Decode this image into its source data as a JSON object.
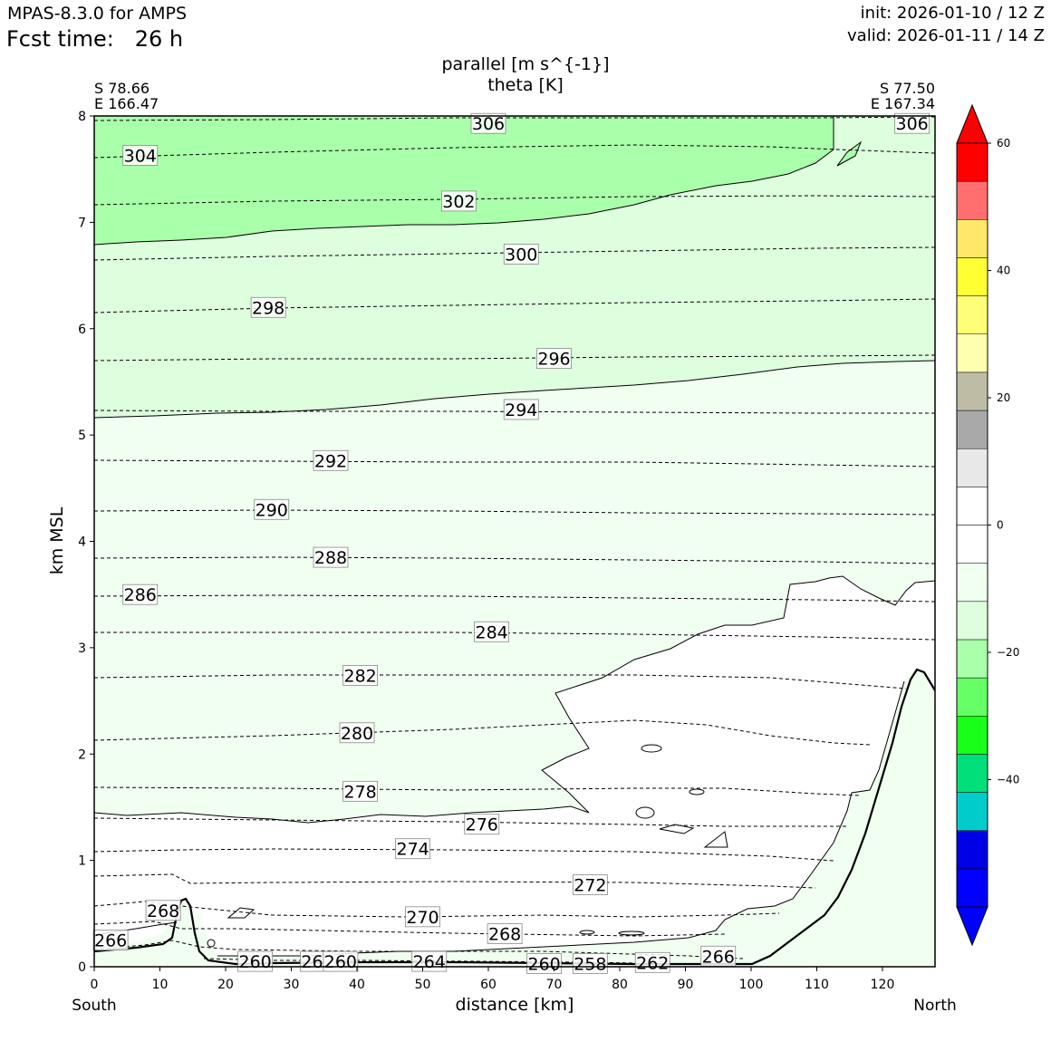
{
  "header": {
    "model": "MPAS-8.3.0 for AMPS",
    "fcst_time": "Fcst time:   26 h",
    "init": "init: 2026-01-10 / 12 Z",
    "valid": "valid: 2026-01-11 / 14 Z"
  },
  "chart_data": {
    "type": "contour",
    "title_line1": "parallel [m s^{-1}]",
    "title_line2": "theta [K]",
    "xlabel": "distance [km]",
    "ylabel": "km MSL",
    "xlim": [
      0,
      128
    ],
    "ylim": [
      0,
      8
    ],
    "x_ticks": [
      0,
      10,
      20,
      30,
      40,
      50,
      60,
      70,
      80,
      90,
      100,
      110,
      120
    ],
    "y_ticks": [
      0,
      1,
      2,
      3,
      4,
      5,
      6,
      7,
      8
    ],
    "x_left_label": "South",
    "x_right_label": "North",
    "endpoints": {
      "left": {
        "lat": "S 78.66",
        "lon": "E 166.47"
      },
      "right": {
        "lat": "S 77.50",
        "lon": "E 167.34"
      }
    },
    "colorbar": {
      "min": -60,
      "max": 60,
      "step": 5,
      "tick_labels": [
        "60",
        "40",
        "20",
        "0",
        "−20",
        "−40"
      ],
      "tick_values": [
        60,
        40,
        20,
        0,
        -20,
        -40
      ],
      "colors": [
        "#0000ff",
        "#0000e6",
        "#00cccc",
        "#00e07a",
        "#1aff1a",
        "#66ff66",
        "#aaffaa",
        "#ddffdd",
        "#f0fff0",
        "#ffffff",
        "#ffffff",
        "#e8e8e8",
        "#a9a9a9",
        "#bebca4",
        "#ffffb0",
        "#ffff77",
        "#ffff33",
        "#ffe868",
        "#ff6f6f",
        "#ff0000"
      ],
      "extend": "both"
    },
    "theta_contour_labels": [
      {
        "value": "306",
        "x": 60,
        "z": 7.93
      },
      {
        "value": "306",
        "x": 124.5,
        "z": 7.93
      },
      {
        "value": "304",
        "x": 7,
        "z": 7.63
      },
      {
        "value": "302",
        "x": 55.5,
        "z": 7.2
      },
      {
        "value": "300",
        "x": 65,
        "z": 6.7
      },
      {
        "value": "298",
        "x": 26.5,
        "z": 6.2
      },
      {
        "value": "296",
        "x": 70,
        "z": 5.72
      },
      {
        "value": "294",
        "x": 65,
        "z": 5.24
      },
      {
        "value": "292",
        "x": 36,
        "z": 4.76
      },
      {
        "value": "290",
        "x": 27,
        "z": 4.3
      },
      {
        "value": "288",
        "x": 36,
        "z": 3.85
      },
      {
        "value": "286",
        "x": 7,
        "z": 3.5
      },
      {
        "value": "284",
        "x": 60.5,
        "z": 3.15
      },
      {
        "value": "282",
        "x": 40.5,
        "z": 2.74
      },
      {
        "value": "280",
        "x": 40,
        "z": 2.2
      },
      {
        "value": "278",
        "x": 40.5,
        "z": 1.65
      },
      {
        "value": "276",
        "x": 59,
        "z": 1.34
      },
      {
        "value": "274",
        "x": 48.5,
        "z": 1.11
      },
      {
        "value": "272",
        "x": 75.5,
        "z": 0.77
      },
      {
        "value": "270",
        "x": 50,
        "z": 0.47
      },
      {
        "value": "268",
        "x": 62.5,
        "z": 0.31
      },
      {
        "value": "268",
        "x": 10.5,
        "z": 0.53
      },
      {
        "value": "266",
        "x": 2.5,
        "z": 0.25
      },
      {
        "value": "266",
        "x": 95,
        "z": 0.1
      },
      {
        "value": "264",
        "x": 51,
        "z": 0.05
      },
      {
        "value": "262",
        "x": 34,
        "z": 0.05
      },
      {
        "value": "262",
        "x": 85,
        "z": 0.04
      },
      {
        "value": "260",
        "x": 24.5,
        "z": 0.05
      },
      {
        "value": "260",
        "x": 37.5,
        "z": 0.05
      },
      {
        "value": "260",
        "x": 68.5,
        "z": 0.03
      },
      {
        "value": "258",
        "x": 75.5,
        "z": 0.03
      }
    ]
  }
}
